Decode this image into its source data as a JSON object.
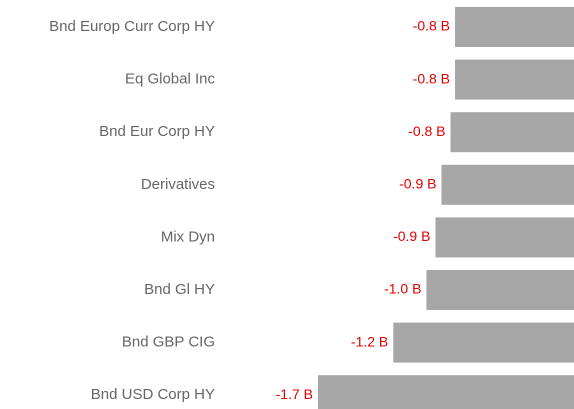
{
  "chart_data": {
    "type": "barh",
    "categories": [
      "Bnd Europ Curr Corp HY",
      "Eq Global Inc",
      "Bnd Eur Corp HY",
      "Derivatives",
      "Mix Dyn",
      "Bnd Gl HY",
      "Bnd GBP CIG",
      "Bnd USD Corp HY"
    ],
    "values": [
      -0.79,
      -0.79,
      -0.82,
      -0.88,
      -0.92,
      -0.98,
      -1.2,
      -1.7
    ],
    "value_labels": [
      "-0.8 B",
      "-0.8 B",
      "-0.8 B",
      "-0.9 B",
      "-0.9 B",
      "-1.0 B",
      "-1.2 B",
      "-1.7 B"
    ],
    "color": "#a6a6a6"
  }
}
